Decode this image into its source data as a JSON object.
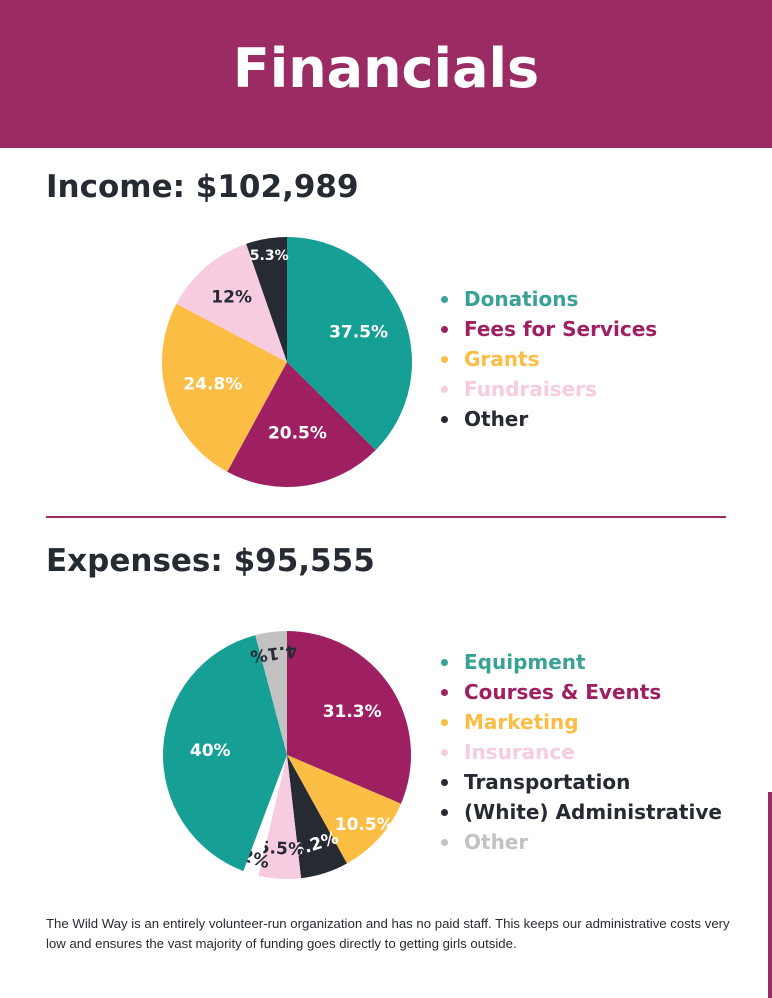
{
  "header": {
    "title": "Financials"
  },
  "income": {
    "title": "Income: $102,989"
  },
  "expenses": {
    "title": "Expenses: $95,555"
  },
  "footnote": "The Wild Way is an entirely volunteer-run organization and has no paid staff. This keeps our administrative costs very low and ensures the vast majority of funding goes directly to getting girls outside.",
  "colors": {
    "brand": "#9a2c63",
    "teal": "#16a095",
    "magenta": "#9e2063",
    "yellow": "#fbbd43",
    "pink": "#f7cbe0",
    "dark": "#262b33",
    "white": "#ffffff",
    "gray": "#c2c2c2",
    "legend_teal": "#3aa197"
  },
  "chart_data": [
    {
      "type": "pie",
      "title": "Income: $102,989",
      "categories": [
        "Donations",
        "Fees for Services",
        "Grants",
        "Fundraisers",
        "Other"
      ],
      "values": [
        37.5,
        20.5,
        24.8,
        12,
        5.3
      ],
      "labels": [
        "37.5%",
        "20.5%",
        "24.8%",
        "12%",
        "5.3%"
      ],
      "colors": [
        "#16a095",
        "#9e2063",
        "#fbbd43",
        "#f7cbe0",
        "#262b33"
      ],
      "legend_colors": [
        "#3aa197",
        "#9e2063",
        "#fbbd43",
        "#f7cbe0",
        "#262b33"
      ],
      "label_colors": [
        "#ffffff",
        "#ffffff",
        "#ffffff",
        "#262b33",
        "#ffffff"
      ],
      "legend": [
        "Donations",
        "Fees for Services",
        "Grants",
        "Fundraisers",
        "Other"
      ],
      "legend_position": "right"
    },
    {
      "type": "pie",
      "title": "Expenses: $95,555",
      "categories": [
        "Courses & Events",
        "Marketing",
        "Transportation",
        "Insurance",
        "(White) Administrative",
        "Equipment",
        "Other"
      ],
      "values": [
        31.3,
        10.5,
        6.2,
        5.5,
        2,
        40,
        4.1
      ],
      "labels": [
        "31.3%",
        "10.5%",
        "6.2%",
        "5.5%",
        "2%",
        "40%",
        "4.1%"
      ],
      "colors": [
        "#9e2063",
        "#fbbd43",
        "#262b33",
        "#f7cbe0",
        "#ffffff",
        "#16a095",
        "#c2c2c2"
      ],
      "label_colors": [
        "#ffffff",
        "#ffffff",
        "#ffffff",
        "#262b33",
        "#262b33",
        "#ffffff",
        "#262b33"
      ],
      "legend": [
        "Equipment",
        "Courses & Events",
        "Marketing",
        "Insurance",
        "Transportation",
        "(White) Administrative",
        "Other"
      ],
      "legend_colors": [
        "#3aa197",
        "#9e2063",
        "#fbbd43",
        "#f7cbe0",
        "#262b33",
        "#262b33",
        "#c2c2c2"
      ],
      "legend_position": "right"
    }
  ]
}
